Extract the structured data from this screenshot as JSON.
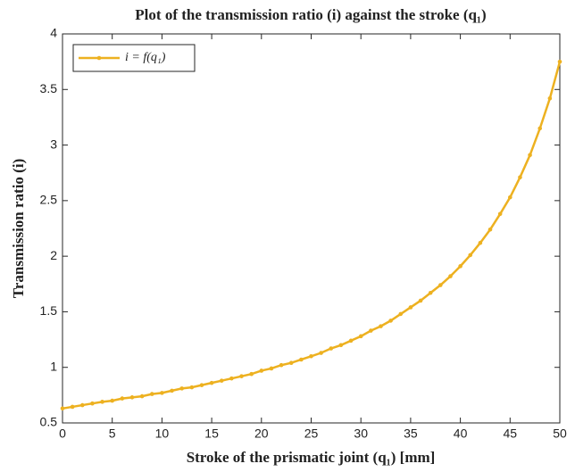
{
  "chart_data": {
    "type": "line",
    "title": "Plot of the transmission ratio (i) against the stroke (q₁)",
    "xlabel": "Stroke of the prismatic joint (q₁) [mm]",
    "ylabel": "Transmission ratio (i)",
    "x": [
      0,
      1,
      2,
      3,
      4,
      5,
      6,
      7,
      8,
      9,
      10,
      11,
      12,
      13,
      14,
      15,
      16,
      17,
      18,
      19,
      20,
      21,
      22,
      23,
      24,
      25,
      26,
      27,
      28,
      29,
      30,
      31,
      32,
      33,
      34,
      35,
      36,
      37,
      38,
      39,
      40,
      41,
      42,
      43,
      44,
      45,
      46,
      47,
      48,
      49,
      50
    ],
    "series": [
      {
        "name": "i = f(q₁)",
        "color": "#edb120",
        "values": [
          0.63,
          0.645,
          0.66,
          0.675,
          0.69,
          0.7,
          0.72,
          0.73,
          0.74,
          0.76,
          0.77,
          0.79,
          0.81,
          0.82,
          0.84,
          0.86,
          0.88,
          0.9,
          0.92,
          0.94,
          0.97,
          0.99,
          1.02,
          1.04,
          1.07,
          1.1,
          1.13,
          1.17,
          1.2,
          1.24,
          1.28,
          1.33,
          1.37,
          1.42,
          1.48,
          1.54,
          1.6,
          1.67,
          1.74,
          1.82,
          1.91,
          2.01,
          2.12,
          2.24,
          2.38,
          2.53,
          2.71,
          2.91,
          3.15,
          3.42,
          3.75
        ]
      }
    ],
    "xlim": [
      0,
      50
    ],
    "xticks": [
      0,
      5,
      10,
      15,
      20,
      25,
      30,
      35,
      40,
      45,
      50
    ],
    "ylim": [
      0.5,
      4
    ],
    "yticks": [
      0.5,
      1,
      1.5,
      2,
      2.5,
      3,
      3.5,
      4
    ],
    "grid": false,
    "legend": "upper left"
  }
}
